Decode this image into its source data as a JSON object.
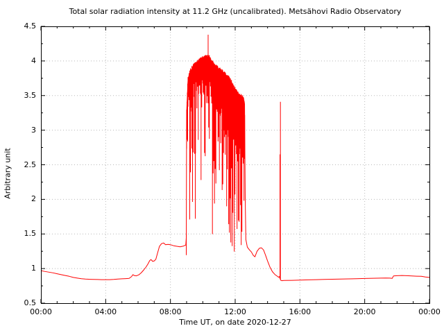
{
  "chart_data": {
    "type": "line",
    "title": "Total solar radiation intensity at 11.2 GHz (uncalibrated). Metsähovi Radio Observatory",
    "xlabel": "Time UT, on date 2020-12-27",
    "ylabel": "Arbitrary unit",
    "series_color": "#ff0000",
    "grid_color": "#b8b8b8",
    "axis_color": "#000000",
    "legend": "none",
    "grid_visible": true,
    "xlim_hours": [
      0,
      24
    ],
    "ylim": [
      0.5,
      4.5
    ],
    "x_ticks": {
      "labels": [
        "00:00",
        "04:00",
        "08:00",
        "12:00",
        "16:00",
        "20:00",
        "00:00"
      ],
      "hours": [
        0,
        4,
        8,
        12,
        16,
        20,
        24
      ],
      "minor_step_hours": 1
    },
    "y_ticks": {
      "labels": [
        "0.5",
        "1",
        "1.5",
        "2",
        "2.5",
        "3",
        "3.5",
        "4",
        "4.5"
      ],
      "values": [
        0.5,
        1,
        1.5,
        2,
        2.5,
        3,
        3.5,
        4,
        4.5
      ],
      "minor_step": 0.25
    },
    "series": [
      {
        "name": "total-solar-radiation-intensity",
        "points": [
          [
            0,
            0.97
          ],
          [
            0.25,
            0.958
          ],
          [
            0.5,
            0.948
          ],
          [
            0.75,
            0.938
          ],
          [
            1,
            0.925
          ],
          [
            1.25,
            0.912
          ],
          [
            1.5,
            0.9
          ],
          [
            1.75,
            0.888
          ],
          [
            2,
            0.872
          ],
          [
            2.25,
            0.862
          ],
          [
            2.5,
            0.853
          ],
          [
            2.75,
            0.848
          ],
          [
            3,
            0.845
          ],
          [
            3.25,
            0.843
          ],
          [
            3.5,
            0.842
          ],
          [
            3.75,
            0.84
          ],
          [
            4,
            0.839
          ],
          [
            4.25,
            0.84
          ],
          [
            4.5,
            0.843
          ],
          [
            4.75,
            0.848
          ],
          [
            5,
            0.852
          ],
          [
            5.25,
            0.855
          ],
          [
            5.45,
            0.858
          ],
          [
            5.6,
            0.885
          ],
          [
            5.68,
            0.912
          ],
          [
            5.78,
            0.898
          ],
          [
            5.9,
            0.895
          ],
          [
            6.05,
            0.91
          ],
          [
            6.2,
            0.94
          ],
          [
            6.35,
            0.98
          ],
          [
            6.5,
            1.025
          ],
          [
            6.62,
            1.07
          ],
          [
            6.72,
            1.115
          ],
          [
            6.8,
            1.13
          ],
          [
            6.9,
            1.105
          ],
          [
            7,
            1.11
          ],
          [
            7.1,
            1.135
          ],
          [
            7.2,
            1.22
          ],
          [
            7.32,
            1.32
          ],
          [
            7.45,
            1.36
          ],
          [
            7.58,
            1.37
          ],
          [
            7.7,
            1.345
          ],
          [
            7.85,
            1.35
          ],
          [
            8,
            1.345
          ],
          [
            8.2,
            1.33
          ],
          [
            8.4,
            1.322
          ],
          [
            8.6,
            1.315
          ],
          [
            8.8,
            1.325
          ],
          [
            8.95,
            1.34
          ],
          [
            8.98,
            1.45
          ],
          [
            9,
            3.25
          ],
          [
            9.08,
            3.7
          ],
          [
            9.2,
            3.82
          ],
          [
            9.35,
            3.88
          ],
          [
            9.5,
            3.92
          ],
          [
            9.65,
            3.95
          ],
          [
            9.8,
            3.98
          ],
          [
            9.95,
            4.01
          ],
          [
            10.1,
            4.02
          ],
          [
            10.25,
            4.04
          ],
          [
            10.4,
            4.03
          ],
          [
            10.55,
            3.97
          ],
          [
            10.7,
            3.92
          ],
          [
            10.85,
            3.89
          ],
          [
            11,
            3.86
          ],
          [
            11.15,
            3.84
          ],
          [
            11.3,
            3.8
          ],
          [
            11.45,
            3.76
          ],
          [
            11.6,
            3.73
          ],
          [
            11.75,
            3.68
          ],
          [
            11.9,
            3.6
          ],
          [
            12.05,
            3.55
          ],
          [
            12.2,
            3.5
          ],
          [
            12.35,
            3.47
          ],
          [
            12.5,
            3.44
          ],
          [
            12.58,
            3.38
          ],
          [
            12.62,
            2
          ],
          [
            12.66,
            1.42
          ],
          [
            12.75,
            1.31
          ],
          [
            12.88,
            1.27
          ],
          [
            13,
            1.24
          ],
          [
            13.12,
            1.19
          ],
          [
            13.22,
            1.17
          ],
          [
            13.35,
            1.25
          ],
          [
            13.5,
            1.295
          ],
          [
            13.62,
            1.3
          ],
          [
            13.75,
            1.27
          ],
          [
            13.88,
            1.19
          ],
          [
            14,
            1.11
          ],
          [
            14.15,
            1.02
          ],
          [
            14.3,
            0.955
          ],
          [
            14.45,
            0.915
          ],
          [
            14.6,
            0.89
          ],
          [
            14.68,
            0.875
          ],
          [
            14.73,
            0.885
          ],
          [
            14.76,
            0.86
          ],
          [
            14.82,
            0.83
          ],
          [
            14.9,
            0.825
          ],
          [
            15,
            0.828
          ],
          [
            15.5,
            0.83
          ],
          [
            16,
            0.833
          ],
          [
            16.5,
            0.837
          ],
          [
            17,
            0.84
          ],
          [
            17.5,
            0.843
          ],
          [
            18,
            0.846
          ],
          [
            18.5,
            0.849
          ],
          [
            19,
            0.851
          ],
          [
            19.5,
            0.854
          ],
          [
            20,
            0.857
          ],
          [
            20.5,
            0.86
          ],
          [
            21,
            0.862
          ],
          [
            21.3,
            0.864
          ],
          [
            21.55,
            0.862
          ],
          [
            21.7,
            0.858
          ],
          [
            21.78,
            0.893
          ],
          [
            22,
            0.897
          ],
          [
            22.3,
            0.9
          ],
          [
            22.6,
            0.897
          ],
          [
            22.9,
            0.893
          ],
          [
            23.2,
            0.89
          ],
          [
            23.5,
            0.888
          ],
          [
            23.75,
            0.878
          ],
          [
            24,
            0.872
          ]
        ]
      }
    ],
    "spikes": [
      {
        "hour": 10.33,
        "base": 4.02,
        "value": 4.38
      },
      {
        "hour": 14.77,
        "base": 0.86,
        "value": 2.65
      },
      {
        "hour": 14.795,
        "base": 0.84,
        "value": 3.41
      }
    ],
    "noise_bands": [
      {
        "t0": 8.98,
        "t1": 9.55,
        "floor": 1.35,
        "solid_min": 0.15,
        "solid_max": 0.6,
        "deep_prob": 0.5,
        "deep_exp": 1.6
      },
      {
        "t0": 9.55,
        "t1": 10.55,
        "floor": 1.45,
        "solid_min": 0.15,
        "solid_max": 0.55,
        "deep_prob": 0.45,
        "deep_exp": 1.8
      },
      {
        "t0": 10.55,
        "t1": 11.3,
        "floor": 1.3,
        "solid_min": 0.2,
        "solid_max": 0.7,
        "deep_prob": 0.6,
        "deep_exp": 1.3
      },
      {
        "t0": 11.3,
        "t1": 12.6,
        "floor": 1.2,
        "solid_min": 0.25,
        "solid_max": 0.9,
        "deep_prob": 0.88,
        "deep_exp": 0.75
      }
    ],
    "noise_seed": 20201227,
    "max_value_shown": 4.38,
    "quiet_level_shown": 0.83
  }
}
